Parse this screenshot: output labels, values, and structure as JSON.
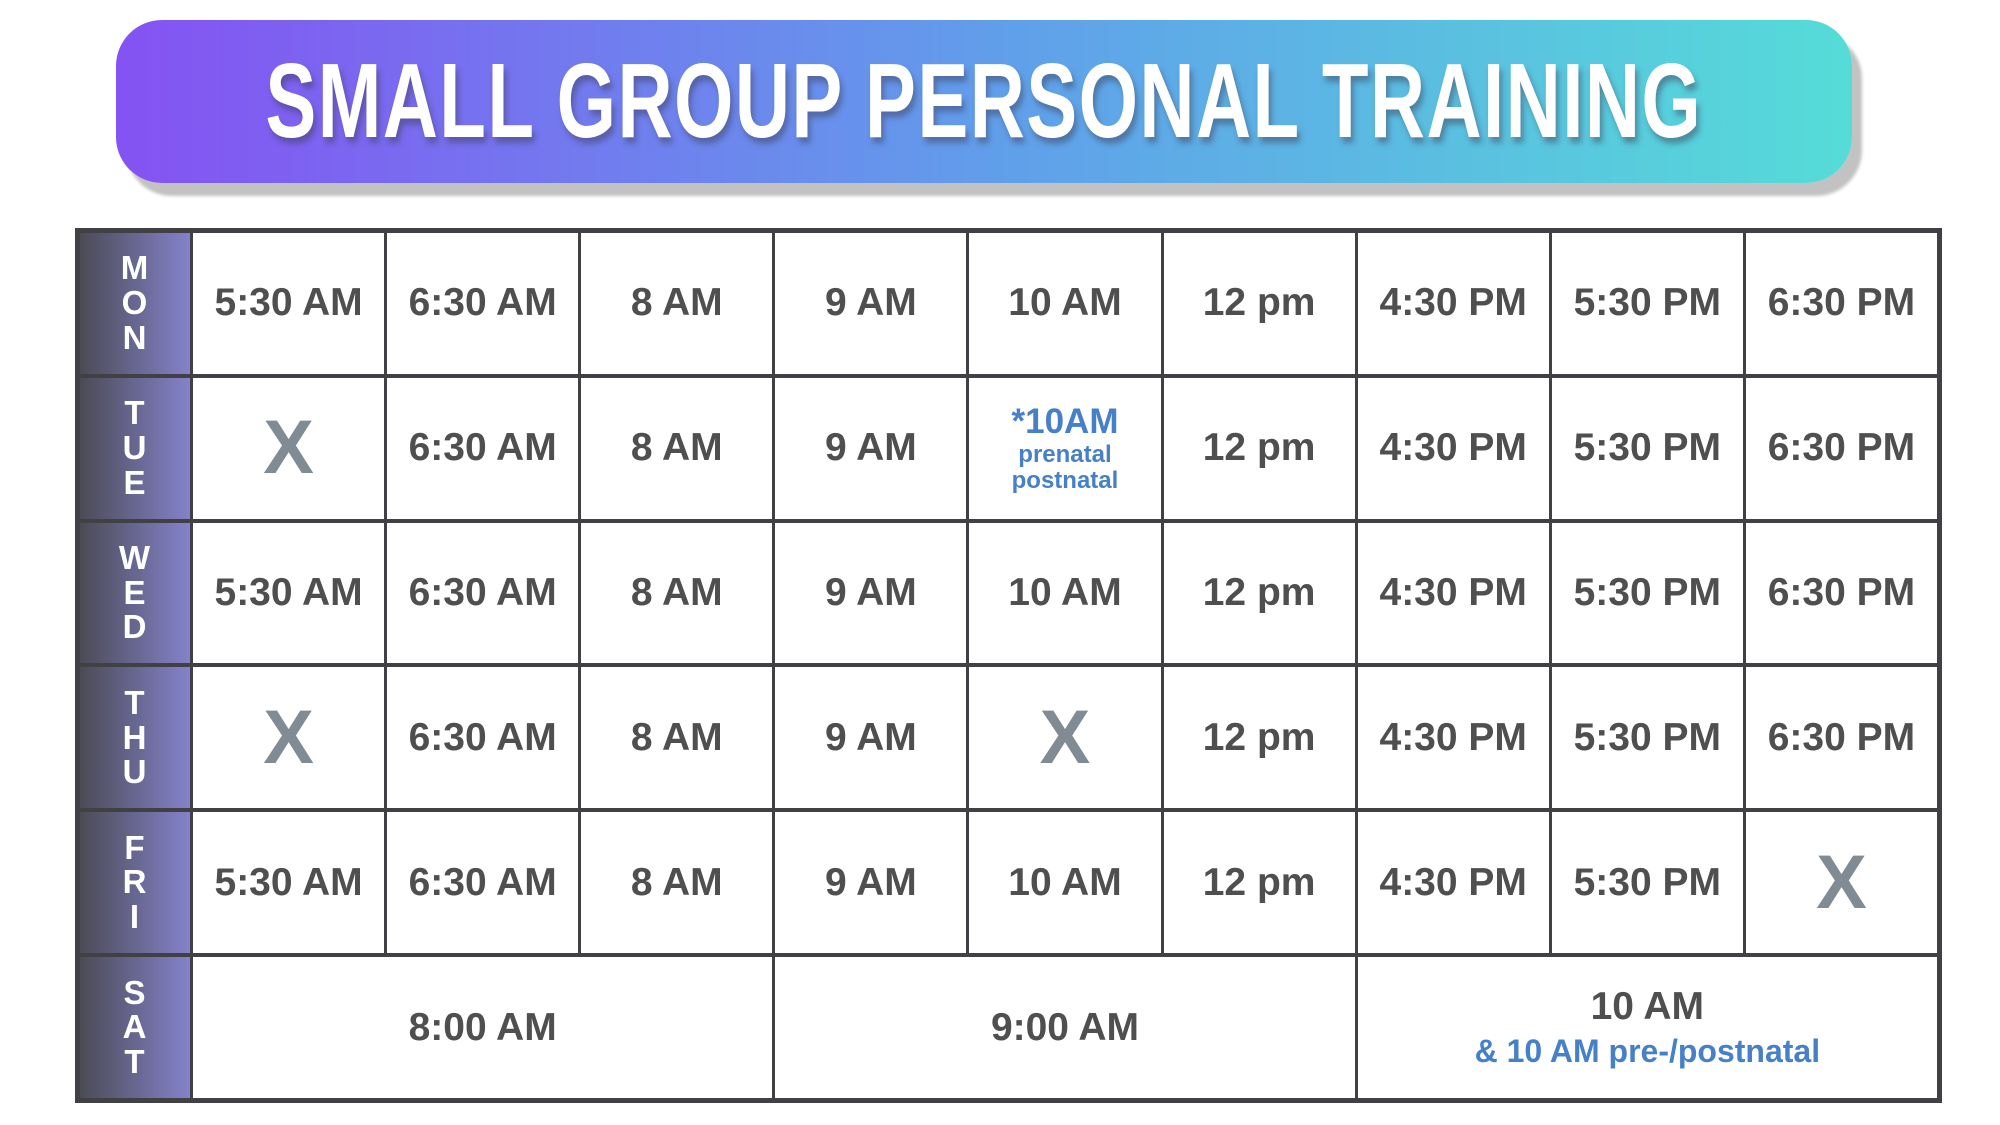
{
  "banner": {
    "title": "SMALL GROUP PERSONAL TRAINING",
    "gradient": [
      "#8552f3",
      "#60a0ea",
      "#55dcd8"
    ],
    "title_color": "#ffffff"
  },
  "colors": {
    "border": "#404045",
    "time_text": "#4f4f4f",
    "closed_x": "#808b94",
    "accent_blue": "#4680c9",
    "day_gradient_left": "#4b4b56",
    "day_gradient_right": "#8482ca"
  },
  "schedule": {
    "rows": [
      {
        "day": "MON",
        "cells": [
          {
            "type": "time",
            "text": "5:30 AM"
          },
          {
            "type": "time",
            "text": "6:30 AM"
          },
          {
            "type": "time",
            "text": "8 AM"
          },
          {
            "type": "time",
            "text": "9 AM"
          },
          {
            "type": "time",
            "text": "10 AM"
          },
          {
            "type": "time",
            "text": "12 pm"
          },
          {
            "type": "time",
            "text": "4:30 PM"
          },
          {
            "type": "time",
            "text": "5:30 PM"
          },
          {
            "type": "time",
            "text": "6:30 PM"
          }
        ]
      },
      {
        "day": "TUE",
        "cells": [
          {
            "type": "x",
            "text": "X"
          },
          {
            "type": "time",
            "text": "6:30 AM"
          },
          {
            "type": "time",
            "text": "8 AM"
          },
          {
            "type": "time",
            "text": "9 AM"
          },
          {
            "type": "special",
            "text": "*10AM",
            "sub": [
              "prenatal",
              "postnatal"
            ]
          },
          {
            "type": "time",
            "text": "12 pm"
          },
          {
            "type": "time",
            "text": "4:30 PM"
          },
          {
            "type": "time",
            "text": "5:30 PM"
          },
          {
            "type": "time",
            "text": "6:30 PM"
          }
        ]
      },
      {
        "day": "WED",
        "cells": [
          {
            "type": "time",
            "text": "5:30 AM"
          },
          {
            "type": "time",
            "text": "6:30 AM"
          },
          {
            "type": "time",
            "text": "8 AM"
          },
          {
            "type": "time",
            "text": "9 AM"
          },
          {
            "type": "time",
            "text": "10 AM"
          },
          {
            "type": "time",
            "text": "12 pm"
          },
          {
            "type": "time",
            "text": "4:30 PM"
          },
          {
            "type": "time",
            "text": "5:30 PM"
          },
          {
            "type": "time",
            "text": "6:30 PM"
          }
        ]
      },
      {
        "day": "THU",
        "cells": [
          {
            "type": "x",
            "text": "X"
          },
          {
            "type": "time",
            "text": "6:30 AM"
          },
          {
            "type": "time",
            "text": "8 AM"
          },
          {
            "type": "time",
            "text": "9 AM"
          },
          {
            "type": "x",
            "text": "X"
          },
          {
            "type": "time",
            "text": "12 pm"
          },
          {
            "type": "time",
            "text": "4:30 PM"
          },
          {
            "type": "time",
            "text": "5:30 PM"
          },
          {
            "type": "time",
            "text": "6:30 PM"
          }
        ]
      },
      {
        "day": "FRI",
        "cells": [
          {
            "type": "time",
            "text": "5:30 AM"
          },
          {
            "type": "time",
            "text": "6:30 AM"
          },
          {
            "type": "time",
            "text": "8 AM"
          },
          {
            "type": "time",
            "text": "9 AM"
          },
          {
            "type": "time",
            "text": "10 AM"
          },
          {
            "type": "time",
            "text": "12 pm"
          },
          {
            "type": "time",
            "text": "4:30 PM"
          },
          {
            "type": "time",
            "text": "5:30 PM"
          },
          {
            "type": "x",
            "text": "X"
          }
        ]
      },
      {
        "day": "SAT",
        "cells": [
          {
            "type": "time",
            "text": "8:00 AM",
            "span": 3
          },
          {
            "type": "time",
            "text": "9:00 AM",
            "span": 3
          },
          {
            "type": "time-sub",
            "text": "10 AM",
            "sub": [
              "& 10 AM pre-/postnatal"
            ],
            "span": 3
          }
        ]
      }
    ]
  }
}
